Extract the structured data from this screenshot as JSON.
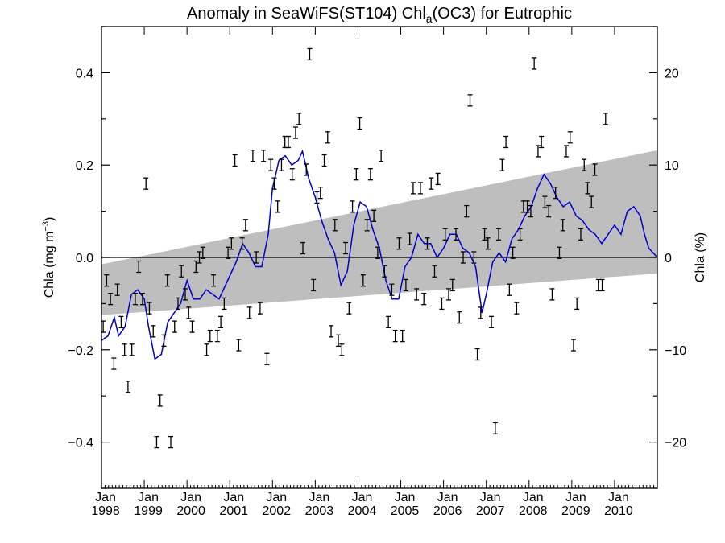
{
  "chart_data": {
    "type": "line",
    "title": {
      "prefix": "Anomaly in SeaWiFS(ST104) Chl",
      "subscript": "a",
      "suffix": "(OC3) for Eutrophic"
    },
    "ylabel_left": {
      "text": "Chla (mg m",
      "superscript": "−3",
      "close": ")"
    },
    "ylabel_right": "Chla (%)",
    "xlim": [
      1998.0,
      2011.0
    ],
    "ylim_left": [
      -0.5,
      0.5
    ],
    "ylim_right": [
      -25,
      25
    ],
    "x_ticks": [
      {
        "value": 1998,
        "month": "Jan",
        "year": "1998"
      },
      {
        "value": 1999,
        "month": "Jan",
        "year": "1999"
      },
      {
        "value": 2000,
        "month": "Jan",
        "year": "2000"
      },
      {
        "value": 2001,
        "month": "Jan",
        "year": "2001"
      },
      {
        "value": 2002,
        "month": "Jan",
        "year": "2002"
      },
      {
        "value": 2003,
        "month": "Jan",
        "year": "2003"
      },
      {
        "value": 2004,
        "month": "Jan",
        "year": "2004"
      },
      {
        "value": 2005,
        "month": "Jan",
        "year": "2005"
      },
      {
        "value": 2006,
        "month": "Jan",
        "year": "2006"
      },
      {
        "value": 2007,
        "month": "Jan",
        "year": "2007"
      },
      {
        "value": 2008,
        "month": "Jan",
        "year": "2008"
      },
      {
        "value": 2009,
        "month": "Jan",
        "year": "2009"
      },
      {
        "value": 2010,
        "month": "Jan",
        "year": "2010"
      }
    ],
    "y_ticks_left": [
      {
        "value": 0.4,
        "label": "0.4"
      },
      {
        "value": 0.2,
        "label": "0.2"
      },
      {
        "value": 0.0,
        "label": "0.0"
      },
      {
        "value": -0.2,
        "label": "−0.2"
      },
      {
        "value": -0.4,
        "label": "−0.4"
      }
    ],
    "y_ticks_right": [
      {
        "value": 20,
        "label": "20"
      },
      {
        "value": 10,
        "label": "10"
      },
      {
        "value": 0,
        "label": "0"
      },
      {
        "value": -10,
        "label": "−10"
      },
      {
        "value": -20,
        "label": "−20"
      }
    ],
    "zero_line": 0.0,
    "trend_band": {
      "x": [
        1998.0,
        2011.0
      ],
      "upper": [
        -0.015,
        0.232
      ],
      "lower": [
        -0.125,
        -0.035
      ],
      "color": "#bebebe"
    },
    "colors": {
      "line": "#0000cc",
      "markers": "#000000",
      "axes": "#000000"
    },
    "monthly_anomaly": [
      {
        "x": 1998.04,
        "y": -0.15
      },
      {
        "x": 1998.12,
        "y": -0.05
      },
      {
        "x": 1998.21,
        "y": -0.09
      },
      {
        "x": 1998.29,
        "y": -0.23
      },
      {
        "x": 1998.37,
        "y": -0.07
      },
      {
        "x": 1998.46,
        "y": -0.14
      },
      {
        "x": 1998.54,
        "y": -0.2
      },
      {
        "x": 1998.62,
        "y": -0.28
      },
      {
        "x": 1998.71,
        "y": -0.2
      },
      {
        "x": 1998.79,
        "y": -0.09
      },
      {
        "x": 1998.87,
        "y": -0.02
      },
      {
        "x": 1998.96,
        "y": -0.09
      },
      {
        "x": 1999.04,
        "y": 0.16
      },
      {
        "x": 1999.12,
        "y": -0.11
      },
      {
        "x": 1999.21,
        "y": -0.16
      },
      {
        "x": 1999.29,
        "y": -0.4
      },
      {
        "x": 1999.37,
        "y": -0.31
      },
      {
        "x": 1999.46,
        "y": -0.18
      },
      {
        "x": 1999.54,
        "y": -0.05
      },
      {
        "x": 1999.62,
        "y": -0.4
      },
      {
        "x": 1999.71,
        "y": -0.15
      },
      {
        "x": 1999.79,
        "y": -0.1
      },
      {
        "x": 1999.87,
        "y": -0.03
      },
      {
        "x": 1999.96,
        "y": -0.08
      },
      {
        "x": 2000.04,
        "y": -0.12
      },
      {
        "x": 2000.12,
        "y": -0.15
      },
      {
        "x": 2000.21,
        "y": -0.02
      },
      {
        "x": 2000.29,
        "y": 0.0
      },
      {
        "x": 2000.37,
        "y": 0.01
      },
      {
        "x": 2000.46,
        "y": -0.2
      },
      {
        "x": 2000.54,
        "y": -0.17
      },
      {
        "x": 2000.62,
        "y": -0.05
      },
      {
        "x": 2000.71,
        "y": -0.17
      },
      {
        "x": 2000.79,
        "y": -0.14
      },
      {
        "x": 2000.87,
        "y": -0.1
      },
      {
        "x": 2000.96,
        "y": 0.01
      },
      {
        "x": 2001.04,
        "y": 0.03
      },
      {
        "x": 2001.12,
        "y": 0.21
      },
      {
        "x": 2001.21,
        "y": -0.19
      },
      {
        "x": 2001.29,
        "y": 0.03
      },
      {
        "x": 2001.37,
        "y": 0.07
      },
      {
        "x": 2001.46,
        "y": -0.12
      },
      {
        "x": 2001.54,
        "y": 0.22
      },
      {
        "x": 2001.62,
        "y": 0.0
      },
      {
        "x": 2001.71,
        "y": -0.11
      },
      {
        "x": 2001.79,
        "y": 0.22
      },
      {
        "x": 2001.87,
        "y": -0.22
      },
      {
        "x": 2001.96,
        "y": 0.2
      },
      {
        "x": 2002.04,
        "y": 0.16
      },
      {
        "x": 2002.12,
        "y": 0.11
      },
      {
        "x": 2002.21,
        "y": 0.2
      },
      {
        "x": 2002.29,
        "y": 0.25
      },
      {
        "x": 2002.37,
        "y": 0.25
      },
      {
        "x": 2002.46,
        "y": 0.18
      },
      {
        "x": 2002.54,
        "y": 0.27
      },
      {
        "x": 2002.62,
        "y": 0.3
      },
      {
        "x": 2002.71,
        "y": 0.02
      },
      {
        "x": 2002.79,
        "y": 0.19
      },
      {
        "x": 2002.87,
        "y": 0.44
      },
      {
        "x": 2002.96,
        "y": -0.06
      },
      {
        "x": 2003.04,
        "y": 0.13
      },
      {
        "x": 2003.12,
        "y": 0.14
      },
      {
        "x": 2003.21,
        "y": 0.21
      },
      {
        "x": 2003.29,
        "y": 0.26
      },
      {
        "x": 2003.37,
        "y": -0.16
      },
      {
        "x": 2003.46,
        "y": 0.07
      },
      {
        "x": 2003.54,
        "y": -0.18
      },
      {
        "x": 2003.62,
        "y": -0.2
      },
      {
        "x": 2003.71,
        "y": 0.02
      },
      {
        "x": 2003.79,
        "y": -0.11
      },
      {
        "x": 2003.87,
        "y": 0.11
      },
      {
        "x": 2003.96,
        "y": 0.18
      },
      {
        "x": 2004.04,
        "y": 0.29
      },
      {
        "x": 2004.12,
        "y": -0.05
      },
      {
        "x": 2004.21,
        "y": 0.07
      },
      {
        "x": 2004.29,
        "y": 0.18
      },
      {
        "x": 2004.37,
        "y": 0.09
      },
      {
        "x": 2004.46,
        "y": 0.01
      },
      {
        "x": 2004.54,
        "y": 0.22
      },
      {
        "x": 2004.62,
        "y": -0.03
      },
      {
        "x": 2004.71,
        "y": -0.14
      },
      {
        "x": 2004.79,
        "y": -0.07
      },
      {
        "x": 2004.87,
        "y": -0.17
      },
      {
        "x": 2004.96,
        "y": 0.03
      },
      {
        "x": 2005.04,
        "y": -0.17
      },
      {
        "x": 2005.12,
        "y": -0.06
      },
      {
        "x": 2005.21,
        "y": 0.04
      },
      {
        "x": 2005.29,
        "y": 0.15
      },
      {
        "x": 2005.37,
        "y": -0.08
      },
      {
        "x": 2005.46,
        "y": 0.15
      },
      {
        "x": 2005.54,
        "y": -0.09
      },
      {
        "x": 2005.62,
        "y": 0.03
      },
      {
        "x": 2005.71,
        "y": 0.16
      },
      {
        "x": 2005.79,
        "y": -0.03
      },
      {
        "x": 2005.87,
        "y": 0.17
      },
      {
        "x": 2005.96,
        "y": -0.1
      },
      {
        "x": 2006.04,
        "y": 0.05
      },
      {
        "x": 2006.12,
        "y": -0.08
      },
      {
        "x": 2006.21,
        "y": -0.06
      },
      {
        "x": 2006.29,
        "y": 0.05
      },
      {
        "x": 2006.37,
        "y": -0.13
      },
      {
        "x": 2006.46,
        "y": 0.0
      },
      {
        "x": 2006.54,
        "y": 0.1
      },
      {
        "x": 2006.62,
        "y": 0.34
      },
      {
        "x": 2006.71,
        "y": 0.0
      },
      {
        "x": 2006.79,
        "y": -0.21
      },
      {
        "x": 2006.87,
        "y": -0.12
      },
      {
        "x": 2006.96,
        "y": 0.05
      },
      {
        "x": 2007.04,
        "y": 0.03
      },
      {
        "x": 2007.12,
        "y": -0.14
      },
      {
        "x": 2007.21,
        "y": -0.37
      },
      {
        "x": 2007.29,
        "y": 0.05
      },
      {
        "x": 2007.37,
        "y": 0.2
      },
      {
        "x": 2007.46,
        "y": 0.25
      },
      {
        "x": 2007.54,
        "y": -0.07
      },
      {
        "x": 2007.62,
        "y": 0.01
      },
      {
        "x": 2007.71,
        "y": -0.11
      },
      {
        "x": 2007.79,
        "y": 0.05
      },
      {
        "x": 2007.87,
        "y": 0.11
      },
      {
        "x": 2007.96,
        "y": 0.11
      },
      {
        "x": 2008.04,
        "y": 0.1
      },
      {
        "x": 2008.12,
        "y": 0.42
      },
      {
        "x": 2008.21,
        "y": 0.23
      },
      {
        "x": 2008.29,
        "y": 0.25
      },
      {
        "x": 2008.37,
        "y": 0.12
      },
      {
        "x": 2008.46,
        "y": 0.1
      },
      {
        "x": 2008.54,
        "y": -0.08
      },
      {
        "x": 2008.62,
        "y": 0.14
      },
      {
        "x": 2008.71,
        "y": 0.01
      },
      {
        "x": 2008.79,
        "y": 0.07
      },
      {
        "x": 2008.87,
        "y": 0.23
      },
      {
        "x": 2008.96,
        "y": 0.26
      },
      {
        "x": 2009.04,
        "y": -0.19
      },
      {
        "x": 2009.12,
        "y": -0.1
      },
      {
        "x": 2009.21,
        "y": 0.05
      },
      {
        "x": 2009.29,
        "y": 0.2
      },
      {
        "x": 2009.37,
        "y": 0.15
      },
      {
        "x": 2009.46,
        "y": 0.12
      },
      {
        "x": 2009.54,
        "y": 0.19
      },
      {
        "x": 2009.62,
        "y": -0.06
      },
      {
        "x": 2009.71,
        "y": -0.06
      },
      {
        "x": 2009.79,
        "y": 0.3
      }
    ],
    "running_mean": [
      {
        "x": 1998.0,
        "y": -0.18
      },
      {
        "x": 1998.15,
        "y": -0.17
      },
      {
        "x": 1998.3,
        "y": -0.13
      },
      {
        "x": 1998.4,
        "y": -0.17
      },
      {
        "x": 1998.55,
        "y": -0.15
      },
      {
        "x": 1998.7,
        "y": -0.08
      },
      {
        "x": 1998.85,
        "y": -0.07
      },
      {
        "x": 1999.0,
        "y": -0.09
      },
      {
        "x": 1999.1,
        "y": -0.15
      },
      {
        "x": 1999.25,
        "y": -0.22
      },
      {
        "x": 1999.4,
        "y": -0.21
      },
      {
        "x": 1999.55,
        "y": -0.14
      },
      {
        "x": 1999.7,
        "y": -0.12
      },
      {
        "x": 1999.85,
        "y": -0.1
      },
      {
        "x": 2000.0,
        "y": -0.05
      },
      {
        "x": 2000.15,
        "y": -0.09
      },
      {
        "x": 2000.3,
        "y": -0.09
      },
      {
        "x": 2000.45,
        "y": -0.07
      },
      {
        "x": 2000.6,
        "y": -0.08
      },
      {
        "x": 2000.75,
        "y": -0.09
      },
      {
        "x": 2000.9,
        "y": -0.06
      },
      {
        "x": 2001.0,
        "y": -0.04
      },
      {
        "x": 2001.15,
        "y": -0.01
      },
      {
        "x": 2001.3,
        "y": 0.03
      },
      {
        "x": 2001.45,
        "y": 0.01
      },
      {
        "x": 2001.6,
        "y": -0.02
      },
      {
        "x": 2001.75,
        "y": -0.02
      },
      {
        "x": 2001.9,
        "y": 0.05
      },
      {
        "x": 2002.0,
        "y": 0.15
      },
      {
        "x": 2002.15,
        "y": 0.21
      },
      {
        "x": 2002.3,
        "y": 0.22
      },
      {
        "x": 2002.45,
        "y": 0.2
      },
      {
        "x": 2002.6,
        "y": 0.21
      },
      {
        "x": 2002.7,
        "y": 0.23
      },
      {
        "x": 2002.85,
        "y": 0.17
      },
      {
        "x": 2003.0,
        "y": 0.13
      },
      {
        "x": 2003.15,
        "y": 0.08
      },
      {
        "x": 2003.3,
        "y": 0.04
      },
      {
        "x": 2003.45,
        "y": 0.01
      },
      {
        "x": 2003.6,
        "y": -0.06
      },
      {
        "x": 2003.75,
        "y": -0.03
      },
      {
        "x": 2003.9,
        "y": 0.07
      },
      {
        "x": 2004.05,
        "y": 0.12
      },
      {
        "x": 2004.2,
        "y": 0.11
      },
      {
        "x": 2004.35,
        "y": 0.06
      },
      {
        "x": 2004.5,
        "y": 0.02
      },
      {
        "x": 2004.65,
        "y": -0.05
      },
      {
        "x": 2004.8,
        "y": -0.09
      },
      {
        "x": 2004.95,
        "y": -0.09
      },
      {
        "x": 2005.1,
        "y": -0.02
      },
      {
        "x": 2005.25,
        "y": 0.0
      },
      {
        "x": 2005.4,
        "y": 0.05
      },
      {
        "x": 2005.55,
        "y": 0.03
      },
      {
        "x": 2005.7,
        "y": 0.03
      },
      {
        "x": 2005.85,
        "y": 0.0
      },
      {
        "x": 2006.0,
        "y": 0.02
      },
      {
        "x": 2006.15,
        "y": 0.05
      },
      {
        "x": 2006.3,
        "y": 0.05
      },
      {
        "x": 2006.45,
        "y": 0.02
      },
      {
        "x": 2006.6,
        "y": 0.01
      },
      {
        "x": 2006.75,
        "y": -0.02
      },
      {
        "x": 2006.9,
        "y": -0.12
      },
      {
        "x": 2007.0,
        "y": -0.08
      },
      {
        "x": 2007.15,
        "y": -0.01
      },
      {
        "x": 2007.3,
        "y": 0.01
      },
      {
        "x": 2007.45,
        "y": -0.01
      },
      {
        "x": 2007.6,
        "y": 0.04
      },
      {
        "x": 2007.75,
        "y": 0.06
      },
      {
        "x": 2007.9,
        "y": 0.09
      },
      {
        "x": 2008.05,
        "y": 0.11
      },
      {
        "x": 2008.2,
        "y": 0.15
      },
      {
        "x": 2008.35,
        "y": 0.18
      },
      {
        "x": 2008.5,
        "y": 0.16
      },
      {
        "x": 2008.65,
        "y": 0.13
      },
      {
        "x": 2008.8,
        "y": 0.11
      },
      {
        "x": 2008.95,
        "y": 0.12
      },
      {
        "x": 2009.1,
        "y": 0.09
      },
      {
        "x": 2009.25,
        "y": 0.08
      },
      {
        "x": 2009.4,
        "y": 0.06
      },
      {
        "x": 2009.55,
        "y": 0.05
      },
      {
        "x": 2009.7,
        "y": 0.03
      },
      {
        "x": 2009.85,
        "y": 0.05
      },
      {
        "x": 2010.0,
        "y": 0.07
      },
      {
        "x": 2010.15,
        "y": 0.05
      },
      {
        "x": 2010.3,
        "y": 0.1
      },
      {
        "x": 2010.45,
        "y": 0.11
      },
      {
        "x": 2010.6,
        "y": 0.09
      },
      {
        "x": 2010.7,
        "y": 0.05
      },
      {
        "x": 2010.8,
        "y": 0.02
      },
      {
        "x": 2011.0,
        "y": 0.0
      }
    ]
  }
}
